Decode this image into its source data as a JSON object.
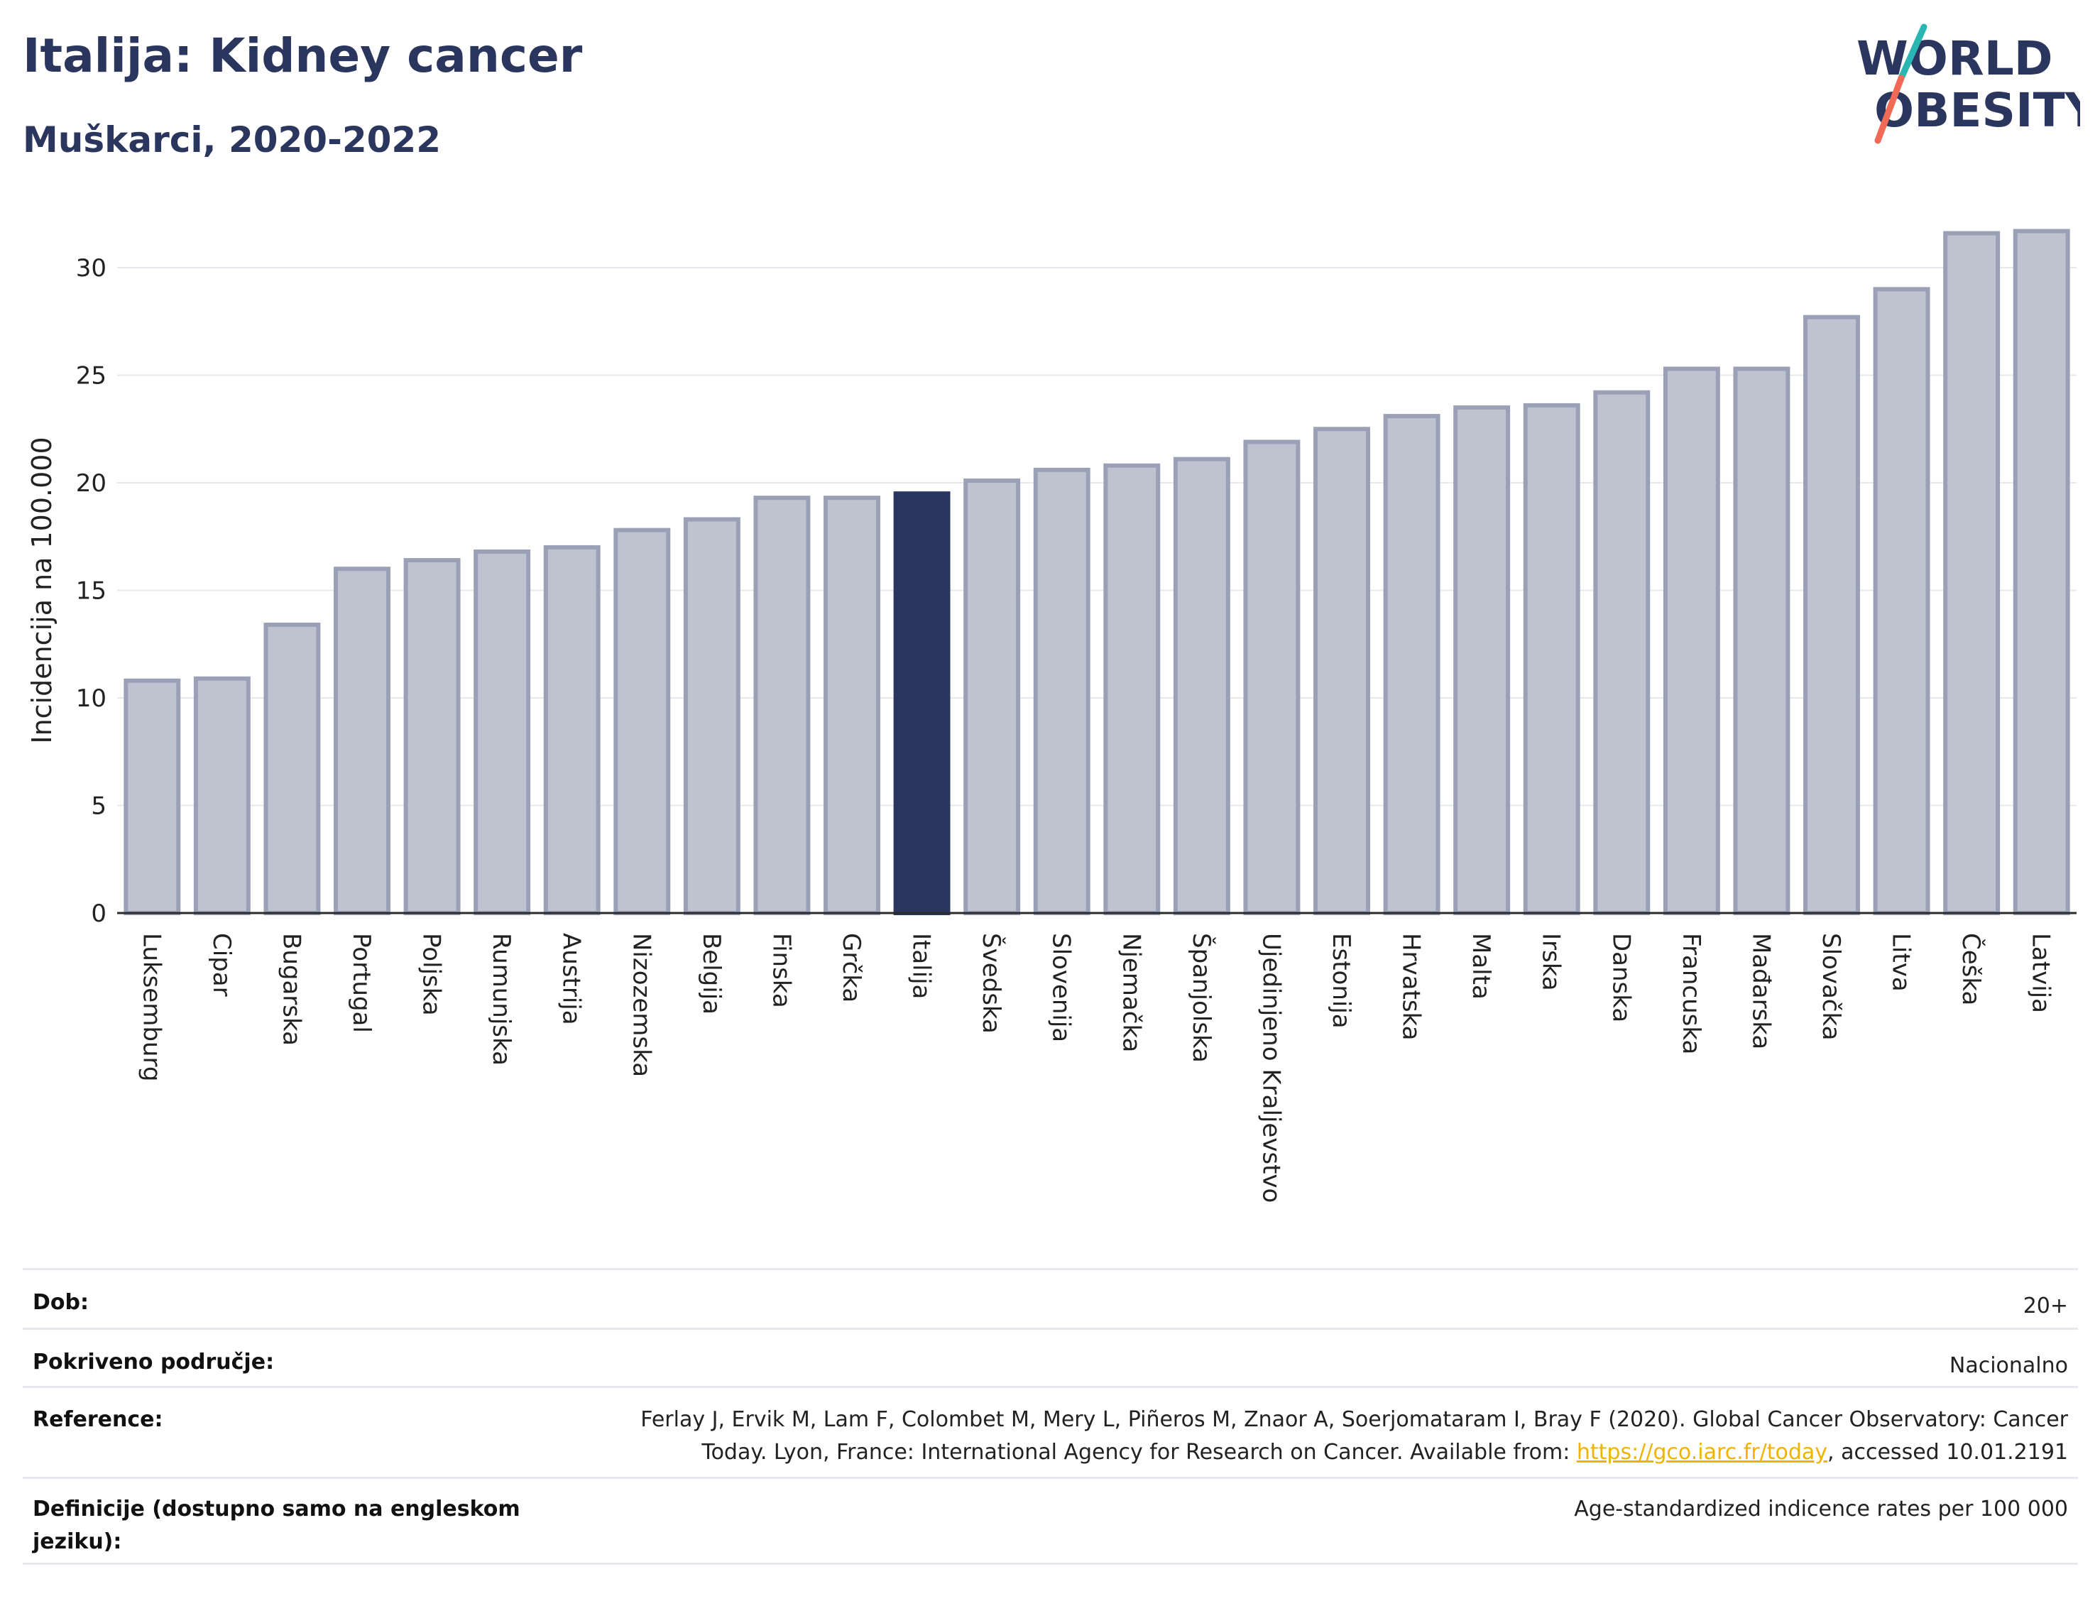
{
  "header": {
    "title": "Italija: Kidney cancer",
    "subtitle": "Muškarci, 2020-2022",
    "logo_line1": "WORLD",
    "logo_line2": "OBESITY"
  },
  "colors": {
    "title": "#2b365f",
    "bar_default_fill": "#bfc3d0",
    "bar_default_stroke": "#9aa1b6",
    "bar_highlight": "#2b365f",
    "grid": "#e6e8ee",
    "logo_slash_teal": "#2ab7b3",
    "logo_slash_red": "#f06a55",
    "link": "#f0b400"
  },
  "chart_data": {
    "type": "bar",
    "title": "Italija: Kidney cancer",
    "subtitle": "Muškarci, 2020-2022",
    "xlabel": "",
    "ylabel": "Incidencija na 100.000",
    "ylim": [
      0,
      33
    ],
    "yticks": [
      0,
      5,
      10,
      15,
      20,
      25,
      30
    ],
    "grid": true,
    "highlight": "Italija",
    "categories": [
      "Luksemburg",
      "Cipar",
      "Bugarska",
      "Portugal",
      "Poljska",
      "Rumunjska",
      "Austrija",
      "Nizozemska",
      "Belgija",
      "Finska",
      "Grčka",
      "Italija",
      "Švedska",
      "Slovenija",
      "Njemačka",
      "Španjolska",
      "Ujedinjeno Kraljevstvo",
      "Estonija",
      "Hrvatska",
      "Malta",
      "Irska",
      "Danska",
      "Francuska",
      "Mađarska",
      "Slovačka",
      "Litva",
      "Češka",
      "Latvija"
    ],
    "values": [
      10.8,
      10.9,
      13.4,
      16.0,
      16.4,
      16.8,
      17.0,
      17.8,
      18.3,
      19.3,
      19.3,
      19.5,
      20.1,
      20.6,
      20.8,
      21.1,
      21.9,
      22.5,
      23.1,
      23.5,
      23.6,
      24.2,
      25.3,
      25.3,
      27.7,
      29.0,
      31.6,
      31.7
    ]
  },
  "footer": {
    "rows": [
      {
        "label": "Dob:",
        "value": "20+"
      },
      {
        "label": "Pokriveno područje:",
        "value": "Nacionalno"
      },
      {
        "label": "Reference:",
        "value_line1": "Ferlay J, Ervik M, Lam F, Colombet M, Mery L, Piñeros M, Znaor A, Soerjomataram I, Bray F (2020). Global Cancer Observatory: Cancer",
        "value_line2_pre": "Today. Lyon, France: International Agency for Research on Cancer. Available from: ",
        "link": "https://gco.iarc.fr/today",
        "value_line2_post": ", accessed 10.01.2191"
      },
      {
        "label": "Definicije (dostupno samo na engleskom jeziku):",
        "value": "Age-standardized indicence rates per 100 000"
      }
    ]
  }
}
